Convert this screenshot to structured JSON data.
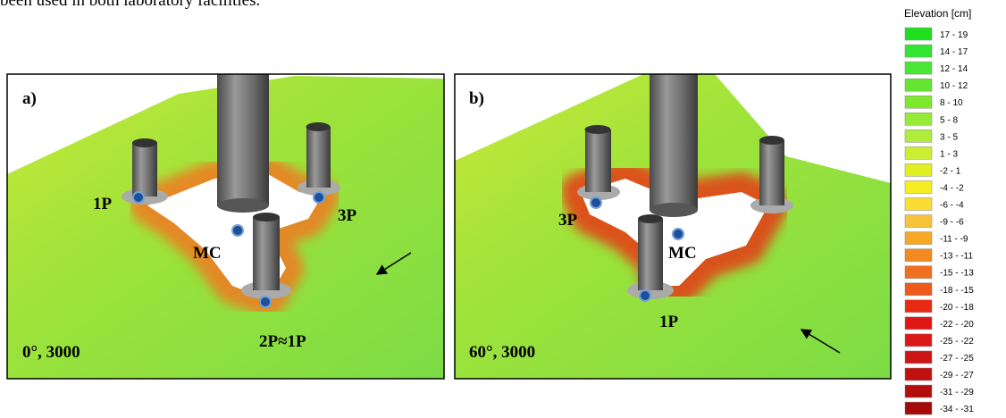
{
  "text": {
    "top_line": "been used in both laboratory facilities."
  },
  "panels": [
    {
      "label": "a)",
      "caption": "0°, 3000",
      "annotations": [
        "1P",
        "3P",
        "MC",
        "2P≈1P"
      ]
    },
    {
      "label": "b)",
      "caption": "60°, 3000",
      "annotations": [
        "3P",
        "MC",
        "1P"
      ]
    }
  ],
  "legend": {
    "title": "Elevation [cm]",
    "items": [
      {
        "label": "17 - 19",
        "color": "#1fe01f"
      },
      {
        "label": "14 - 17",
        "color": "#33e433"
      },
      {
        "label": "12 - 14",
        "color": "#4ae636"
      },
      {
        "label": "10 - 12",
        "color": "#66e433"
      },
      {
        "label": "8 - 10",
        "color": "#7ee82a"
      },
      {
        "label": "5 - 8",
        "color": "#95ea3a"
      },
      {
        "label": "3 - 5",
        "color": "#b0ec3c"
      },
      {
        "label": "1 - 3",
        "color": "#ccee33"
      },
      {
        "label": "-2 - 1",
        "color": "#e0ee22"
      },
      {
        "label": "-4 - -2",
        "color": "#f4ee22"
      },
      {
        "label": "-6 - -4",
        "color": "#fadd33"
      },
      {
        "label": "-9 - -6",
        "color": "#f8c33a"
      },
      {
        "label": "-11 - -9",
        "color": "#f7a825"
      },
      {
        "label": "-13 - -11",
        "color": "#f38a20"
      },
      {
        "label": "-15 - -13",
        "color": "#f07020"
      },
      {
        "label": "-18 - -15",
        "color": "#ed5a1a"
      },
      {
        "label": "-20 - -18",
        "color": "#e82a15"
      },
      {
        "label": "-22 - -20",
        "color": "#e01515"
      },
      {
        "label": "-25 - -22",
        "color": "#dc1818"
      },
      {
        "label": "-27 - -25",
        "color": "#cc1515"
      },
      {
        "label": "-29 - -27",
        "color": "#c01010"
      },
      {
        "label": "-31 - -29",
        "color": "#b30d0d"
      },
      {
        "label": "-34 - -31",
        "color": "#a50a0a"
      }
    ]
  }
}
